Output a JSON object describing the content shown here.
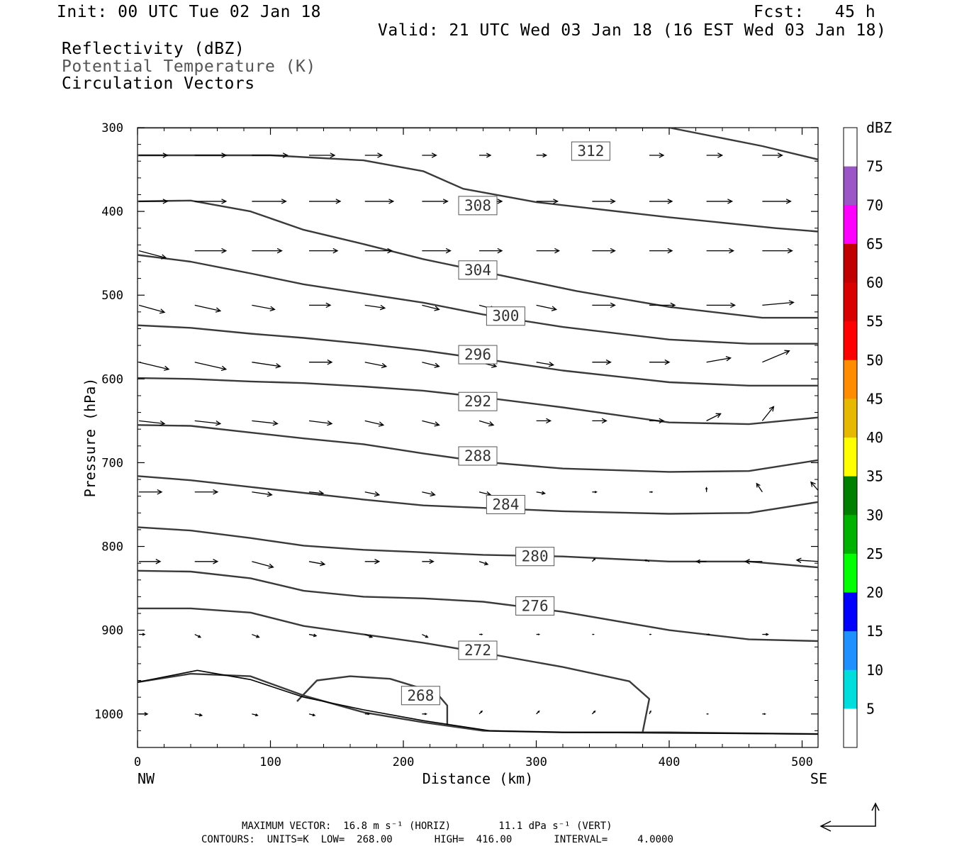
{
  "header": {
    "init": "Init: 00 UTC Tue 02 Jan 18",
    "fcst": "Fcst:   45 h",
    "valid": "Valid: 21 UTC Wed 03 Jan 18 (16 EST Wed 03 Jan 18)"
  },
  "fields": {
    "reflectivity": "Reflectivity (dBZ)",
    "theta": "Potential Temperature (K)",
    "vectors": "Circulation Vectors"
  },
  "footer": {
    "max_vector": "MAXIMUM VECTOR:  16.8 m s⁻¹ (HORIZ)        11.1 dPa s⁻¹ (VERT)",
    "contours": "CONTOURS:  UNITS=K  LOW=  268.00       HIGH=  416.00       INTERVAL=     4.0000"
  },
  "chart_data": {
    "type": "line",
    "title": "",
    "xlabel": "Distance (km)",
    "ylabel": "Pressure (hPa)",
    "xlim": [
      0,
      512
    ],
    "ylim": [
      1040,
      300
    ],
    "y_reversed": true,
    "x_ticks": [
      0,
      100,
      200,
      300,
      400,
      500
    ],
    "y_ticks": [
      300,
      400,
      500,
      600,
      700,
      800,
      900,
      1000
    ],
    "x_end_labels": {
      "left": "NW",
      "right": "SE"
    },
    "contour_units": "K",
    "contour_interval": 4,
    "series": [
      {
        "name": "312",
        "label_at": [
          341,
          328
        ],
        "points": [
          [
            0,
            300
          ],
          [
            230,
            300
          ],
          [
            400,
            300
          ],
          [
            470,
            322
          ],
          [
            512,
            338
          ]
        ]
      },
      {
        "name": "312b",
        "label_at": null,
        "points": [
          [
            0,
            333
          ],
          [
            100,
            333
          ],
          [
            170,
            339
          ],
          [
            215,
            352
          ],
          [
            245,
            373
          ],
          [
            300,
            389
          ],
          [
            400,
            407
          ],
          [
            480,
            420
          ],
          [
            512,
            424
          ]
        ]
      },
      {
        "name": "308",
        "label_at": [
          256,
          393
        ],
        "points": [
          [
            0,
            388
          ],
          [
            40,
            387
          ],
          [
            85,
            400
          ],
          [
            125,
            422
          ],
          [
            170,
            439
          ],
          [
            215,
            457
          ],
          [
            260,
            472
          ],
          [
            330,
            495
          ],
          [
            400,
            514
          ],
          [
            470,
            527
          ],
          [
            512,
            527
          ]
        ]
      },
      {
        "name": "304",
        "label_at": [
          256,
          470
        ],
        "points": [
          [
            0,
            452
          ],
          [
            40,
            460
          ],
          [
            85,
            474
          ],
          [
            125,
            487
          ],
          [
            170,
            498
          ],
          [
            215,
            509
          ],
          [
            260,
            523
          ],
          [
            320,
            538
          ],
          [
            400,
            553
          ],
          [
            460,
            558
          ],
          [
            512,
            558
          ]
        ]
      },
      {
        "name": "300",
        "label_at": [
          277,
          525
        ],
        "points": [
          [
            0,
            536
          ],
          [
            40,
            539
          ],
          [
            85,
            546
          ],
          [
            125,
            551
          ],
          [
            170,
            558
          ],
          [
            215,
            566
          ],
          [
            260,
            576
          ],
          [
            320,
            590
          ],
          [
            400,
            604
          ],
          [
            460,
            608
          ],
          [
            512,
            608
          ]
        ]
      },
      {
        "name": "296",
        "label_at": [
          256,
          571
        ],
        "points": [
          [
            0,
            599
          ],
          [
            40,
            600
          ],
          [
            85,
            603
          ],
          [
            125,
            605
          ],
          [
            170,
            609
          ],
          [
            215,
            614
          ],
          [
            260,
            622
          ],
          [
            320,
            634
          ],
          [
            400,
            652
          ],
          [
            460,
            654
          ],
          [
            512,
            646
          ]
        ]
      },
      {
        "name": "292",
        "label_at": [
          256,
          627
        ],
        "points": [
          [
            0,
            655
          ],
          [
            40,
            656
          ],
          [
            85,
            664
          ],
          [
            125,
            671
          ],
          [
            170,
            678
          ],
          [
            215,
            689
          ],
          [
            260,
            699
          ],
          [
            320,
            707
          ],
          [
            400,
            711
          ],
          [
            460,
            710
          ],
          [
            512,
            697
          ]
        ]
      },
      {
        "name": "288",
        "label_at": [
          256,
          692
        ],
        "points": [
          [
            0,
            716
          ],
          [
            40,
            721
          ],
          [
            85,
            729
          ],
          [
            125,
            736
          ],
          [
            170,
            744
          ],
          [
            215,
            751
          ],
          [
            260,
            754
          ],
          [
            320,
            758
          ],
          [
            400,
            761
          ],
          [
            460,
            760
          ],
          [
            512,
            747
          ]
        ]
      },
      {
        "name": "284",
        "label_at": [
          277,
          750
        ],
        "points": [
          [
            0,
            777
          ],
          [
            40,
            781
          ],
          [
            85,
            790
          ],
          [
            125,
            799
          ],
          [
            170,
            804
          ],
          [
            215,
            807
          ],
          [
            260,
            810
          ],
          [
            320,
            812
          ],
          [
            400,
            818
          ],
          [
            460,
            818
          ],
          [
            512,
            825
          ]
        ]
      },
      {
        "name": "280",
        "label_at": [
          299,
          812
        ],
        "points": [
          [
            0,
            829
          ],
          [
            40,
            830
          ],
          [
            85,
            838
          ],
          [
            125,
            853
          ],
          [
            170,
            860
          ],
          [
            215,
            862
          ],
          [
            260,
            866
          ],
          [
            320,
            878
          ],
          [
            400,
            900
          ],
          [
            460,
            911
          ],
          [
            512,
            913
          ]
        ]
      },
      {
        "name": "276",
        "label_at": [
          299,
          871
        ],
        "points": [
          [
            0,
            874
          ],
          [
            40,
            874
          ],
          [
            85,
            879
          ],
          [
            125,
            895
          ],
          [
            170,
            905
          ],
          [
            215,
            915
          ],
          [
            260,
            927
          ],
          [
            320,
            944
          ],
          [
            370,
            961
          ],
          [
            385,
            982
          ],
          [
            380,
            1022
          ]
        ]
      },
      {
        "name": "272",
        "label_at": [
          256,
          924
        ],
        "points": [
          [
            0,
            962
          ],
          [
            40,
            952
          ],
          [
            85,
            955
          ],
          [
            125,
            978
          ],
          [
            170,
            998
          ],
          [
            215,
            1010
          ],
          [
            260,
            1020
          ],
          [
            320,
            1022
          ],
          [
            400,
            1022
          ],
          [
            512,
            1024
          ]
        ]
      },
      {
        "name": "268",
        "label_at": [
          213,
          978
        ],
        "points": [
          [
            120,
            985
          ],
          [
            135,
            960
          ],
          [
            160,
            955
          ],
          [
            190,
            958
          ],
          [
            225,
            975
          ],
          [
            233,
            990
          ],
          [
            233,
            1015
          ]
        ]
      },
      {
        "name": "terrain",
        "label_at": null,
        "points": [
          [
            0,
            962
          ],
          [
            45,
            948
          ],
          [
            85,
            959
          ],
          [
            125,
            980
          ],
          [
            170,
            995
          ],
          [
            215,
            1008
          ],
          [
            265,
            1020
          ],
          [
            320,
            1022
          ],
          [
            512,
            1024
          ]
        ]
      }
    ],
    "vectors": {
      "x_positions": [
        0,
        42,
        85,
        128,
        170,
        213,
        256,
        299,
        341,
        384,
        427,
        469,
        512
      ],
      "rows": [
        {
          "p": 333,
          "u": [
            20,
            22,
            25,
            18,
            12,
            10,
            8,
            7,
            8,
            10,
            11,
            14,
            16
          ],
          "w": [
            0,
            0,
            0,
            0,
            0,
            0,
            0,
            0,
            0,
            0,
            0,
            0,
            0
          ]
        },
        {
          "p": 388,
          "u": [
            20,
            22,
            24,
            22,
            20,
            18,
            16,
            15,
            16,
            16,
            18,
            20,
            22
          ],
          "w": [
            0,
            0,
            0,
            0,
            0,
            0,
            0,
            0,
            0,
            0,
            0,
            0,
            0
          ]
        },
        {
          "p": 447,
          "u": [
            19,
            22,
            21,
            20,
            19,
            20,
            16,
            16,
            16,
            16,
            19,
            21,
            24
          ],
          "w": [
            -5,
            0,
            0,
            0,
            0,
            0,
            0,
            0,
            0,
            0,
            0,
            0,
            0
          ]
        },
        {
          "p": 512,
          "u": [
            18,
            18,
            16,
            15,
            14,
            12,
            11,
            14,
            16,
            18,
            20,
            22,
            24
          ],
          "w": [
            -5,
            -4,
            -3,
            0,
            -2,
            -3,
            -3,
            -3,
            0,
            0,
            0,
            2,
            8
          ]
        },
        {
          "p": 580,
          "u": [
            21,
            22,
            20,
            16,
            15,
            12,
            12,
            12,
            13,
            14,
            17,
            19,
            21
          ],
          "w": [
            -5,
            -5,
            -3,
            0,
            -3,
            -3,
            -3,
            -2,
            0,
            0,
            3,
            8,
            0
          ]
        },
        {
          "p": 650,
          "u": [
            18,
            18,
            18,
            16,
            13,
            12,
            10,
            10,
            10,
            10,
            10,
            8,
            6
          ],
          "w": [
            -2,
            -2,
            -2,
            -2,
            -3,
            -3,
            -3,
            0,
            0,
            0,
            5,
            10,
            0
          ]
        },
        {
          "p": 735,
          "u": [
            16,
            16,
            14,
            10,
            10,
            9,
            8,
            6,
            3,
            2,
            0,
            -4,
            -6
          ],
          "w": [
            0,
            0,
            -2,
            -1,
            -2,
            -2,
            -2,
            -1,
            0,
            0,
            3,
            6,
            7
          ]
        },
        {
          "p": 818,
          "u": [
            15,
            16,
            15,
            11,
            10,
            8,
            6,
            4,
            2,
            -3,
            -7,
            -12,
            -16
          ],
          "w": [
            0,
            0,
            -4,
            -2,
            0,
            0,
            -2,
            0,
            2,
            1,
            0,
            0,
            1
          ]
        },
        {
          "p": 905,
          "u": [
            4,
            4,
            5,
            5,
            5,
            4,
            2,
            2,
            1,
            1,
            2,
            4,
            6
          ],
          "w": [
            0,
            -2,
            -2,
            -1,
            -2,
            -2,
            0,
            0,
            0,
            0,
            0,
            0,
            0
          ]
        },
        {
          "p": 1000,
          "u": [
            6,
            5,
            4,
            4,
            3,
            3,
            2,
            2,
            2,
            1,
            1,
            2,
            2
          ],
          "w": [
            0,
            -1,
            -1,
            -1,
            0,
            0,
            2,
            2,
            2,
            2,
            0,
            0,
            0
          ]
        }
      ]
    }
  },
  "colorbar": {
    "title": "dBZ",
    "labels": [
      "75",
      "70",
      "65",
      "60",
      "55",
      "50",
      "45",
      "40",
      "35",
      "30",
      "25",
      "20",
      "15",
      "10",
      "5"
    ],
    "colors": [
      "#ffffff",
      "#9a55c6",
      "#ff00ff",
      "#c00000",
      "#d80000",
      "#ff0000",
      "#ff8c00",
      "#e6b800",
      "#ffff00",
      "#007f00",
      "#00b200",
      "#00ff00",
      "#0000ff",
      "#1e90ff",
      "#00dddd",
      "#ffffff"
    ]
  }
}
